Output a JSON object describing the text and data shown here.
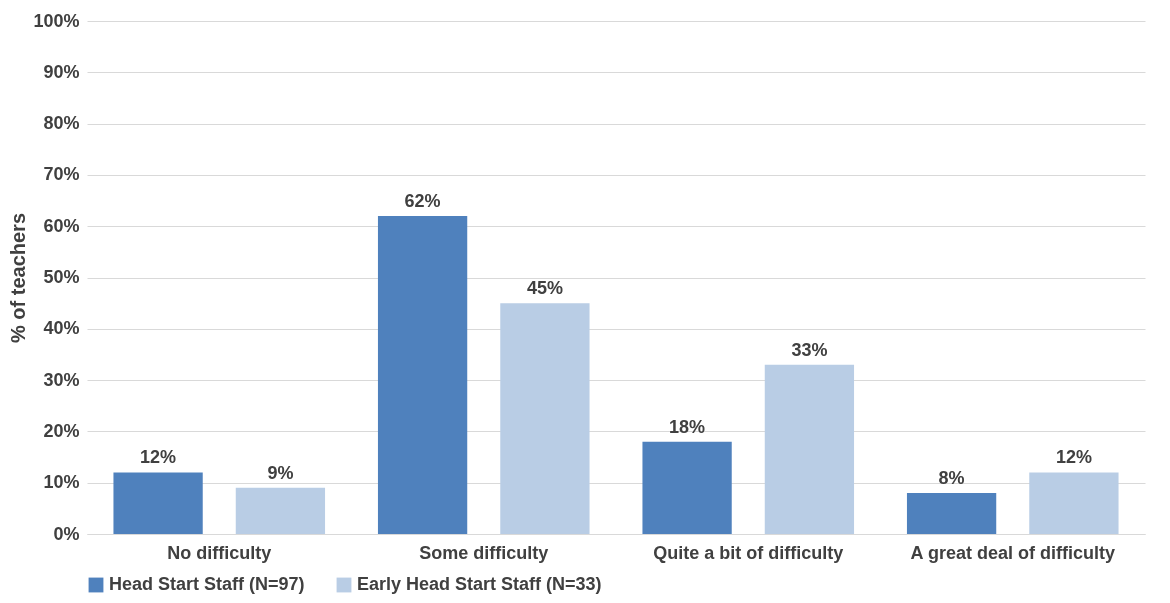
{
  "chart_data": {
    "type": "bar",
    "ylabel": "% of teachers",
    "categories": [
      "No difficulty",
      "Some difficulty",
      "Quite a bit of difficulty",
      "A great deal of difficulty"
    ],
    "series": [
      {
        "name": "Head Start Staff (N=97)",
        "color": "#4f81bd",
        "values": [
          12,
          62,
          18,
          8
        ],
        "value_labels": [
          "12%",
          "62%",
          "18%",
          "8%"
        ]
      },
      {
        "name": "Early Head Start Staff (N=33)",
        "color": "#b9cde5",
        "values": [
          9,
          45,
          33,
          12
        ],
        "value_labels": [
          "9%",
          "45%",
          "33%",
          "12%"
        ]
      }
    ],
    "ylim": [
      0,
      100
    ],
    "yticks": [
      {
        "value": 0,
        "label": "0%"
      },
      {
        "value": 10,
        "label": "10%"
      },
      {
        "value": 20,
        "label": "20%"
      },
      {
        "value": 30,
        "label": "30%"
      },
      {
        "value": 40,
        "label": "40%"
      },
      {
        "value": 50,
        "label": "50%"
      },
      {
        "value": 60,
        "label": "60%"
      },
      {
        "value": 70,
        "label": "70%"
      },
      {
        "value": 80,
        "label": "80%"
      },
      {
        "value": 90,
        "label": "90%"
      },
      {
        "value": 100,
        "label": "100%"
      }
    ],
    "grid": "y",
    "legend": "bottom"
  }
}
